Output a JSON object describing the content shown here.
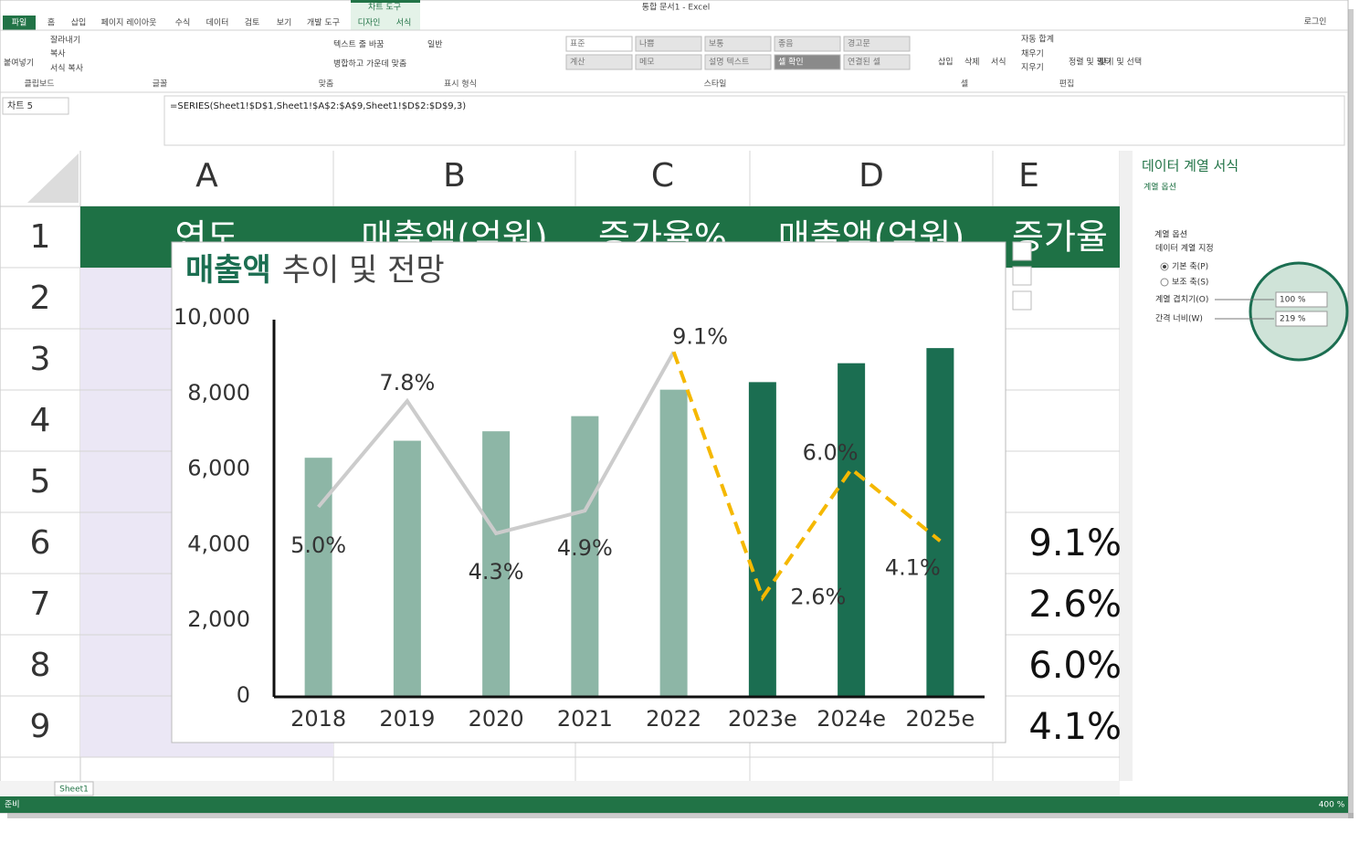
{
  "title_bar": {
    "app_title": "통합 문서1 - Excel",
    "tool_tab": "차트 도구",
    "login": "로그인"
  },
  "tabs": [
    "파일",
    "홈",
    "삽입",
    "페이지 레이아웃",
    "수식",
    "데이터",
    "검토",
    "보기",
    "개발 도구",
    "디자인",
    "서식"
  ],
  "ribbon": {
    "groups": [
      "클립보드",
      "글꼴",
      "맞춤",
      "표시 형식",
      "스타일",
      "셀",
      "편집"
    ],
    "buttons": [
      "붙여넣기",
      "잘라내기",
      "복사",
      "서식 복사",
      "텍스트 줄 바꿈",
      "병합하고 가운데 맞춤",
      "일반",
      "삽입",
      "삭제",
      "서식",
      "자동 합계",
      "채우기",
      "지우기",
      "정렬 및 필터",
      "찾기 및 선택"
    ],
    "styles": [
      "표준",
      "나쁨",
      "보통",
      "좋음",
      "경고문",
      "계산",
      "메모",
      "설명 텍스트",
      "셀 확인",
      "연결된 셀"
    ]
  },
  "formula_bar": {
    "name_box": "차트 5",
    "formula": "=SERIES(Sheet1!$D$1,Sheet1!$A$2:$A$9,Sheet1!$D$2:$D$9,3)"
  },
  "sheet": {
    "columns": [
      "A",
      "B",
      "C",
      "D",
      "E"
    ],
    "rows": [
      1,
      2,
      3,
      4,
      5,
      6,
      7,
      8,
      9
    ],
    "header_row": [
      "연도",
      "매출액(억원)",
      "증가율%",
      "매출액(억원)",
      "증가율"
    ],
    "e_values": [
      "9.1%",
      "2.6%",
      "6.0%",
      "4.1%"
    ],
    "tab": "Sheet1"
  },
  "pane": {
    "title": "데이터 계열 서식",
    "options_menu": "계열 옵션",
    "section": "계열 옵션",
    "subsection": "데이터 계열 지정",
    "primary_axis": "기본 축(P)",
    "secondary_axis": "보조 축(S)",
    "overlap_label": "계열 겹치기(O)",
    "overlap_value": "100 %",
    "gap_label": "간격 너비(W)",
    "gap_value": "219 %"
  },
  "status": {
    "ready": "준비",
    "zoom": "400 %"
  },
  "chart_data": {
    "type": "bar",
    "title": {
      "emphasis": "매출액",
      "rest": "추이 및 전망"
    },
    "categories": [
      "2018",
      "2019",
      "2020",
      "2021",
      "2022",
      "2023e",
      "2024e",
      "2025e"
    ],
    "ylim": [
      0,
      10000
    ],
    "yticks": [
      0,
      {
        "value": 2000,
        "label": "2,000"
      },
      {
        "value": 4000,
        "label": "4,000"
      },
      {
        "value": 6000,
        "label": "6,000"
      },
      {
        "value": 8000,
        "label": "8,000"
      },
      {
        "value": 10000,
        "label": "10,000"
      }
    ],
    "y2lim": [
      0,
      10
    ],
    "grid": false,
    "series": [
      {
        "type": "bar",
        "values": [
          6300,
          6750,
          7000,
          7400,
          8100,
          8300,
          8800,
          9200
        ],
        "colors": [
          "#8db6a6",
          "#8db6a6",
          "#8db6a6",
          "#8db6a6",
          "#8db6a6",
          "#1b6e51",
          "#1b6e51",
          "#1b6e51"
        ]
      },
      {
        "type": "line",
        "axis": "y2",
        "color": "#cccccc",
        "values": [
          5.0,
          7.8,
          4.3,
          4.9,
          9.1,
          null,
          null,
          null
        ],
        "value_labels": [
          "5.0%",
          "7.8%",
          "4.3%",
          "4.9%",
          "9.1%",
          null,
          null,
          null
        ]
      },
      {
        "type": "line",
        "axis": "y2",
        "color": "#f5b800",
        "dashed": true,
        "values": [
          null,
          null,
          null,
          null,
          9.1,
          2.6,
          6.0,
          4.1
        ],
        "value_labels": [
          null,
          null,
          null,
          null,
          null,
          "2.6%",
          "6.0%",
          "4.1%"
        ]
      }
    ]
  }
}
